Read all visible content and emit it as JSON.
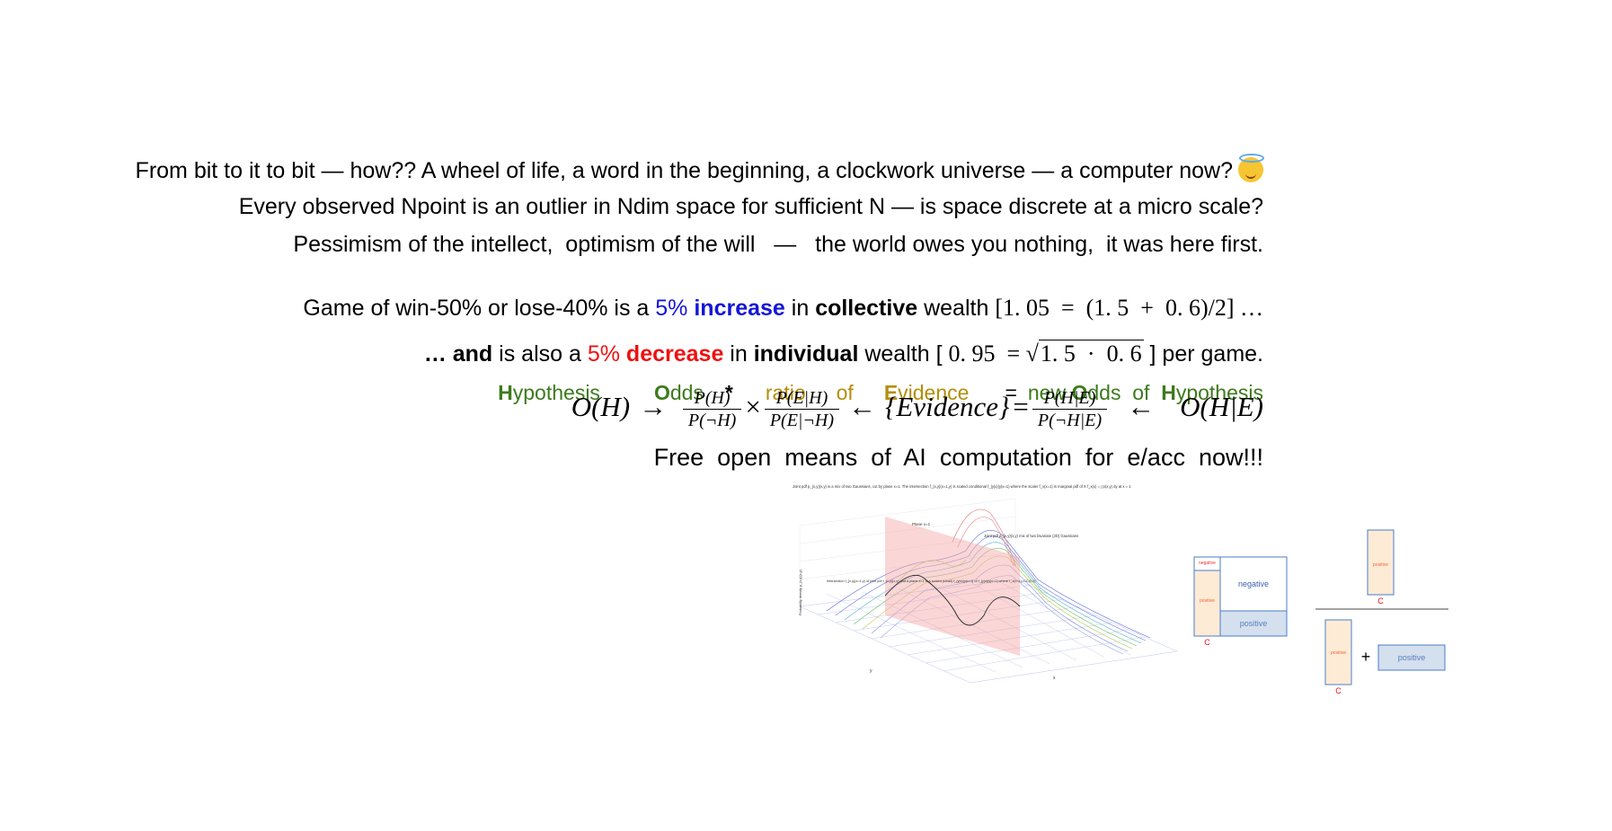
{
  "lines": {
    "l1": "From bit to it to bit — how?? A wheel of life, a word in the beginning, a clockwork universe — a computer now?",
    "l2": "Every observed Npoint is an outlier in Ndim space for sufficient N — is space discrete at a micro scale?",
    "l3": "Pessimism of the intellect,  optimism of the will   —   the world owes you nothing,  it was here first.",
    "l4": {
      "a": "Game of win-50% or lose-40% is a ",
      "b": "5%",
      "c": "increase",
      "d": " in ",
      "e": "collective",
      "f": " wealth ",
      "g": "[1. 05  =  (1. 5  +  0. 6)/2] …"
    },
    "l5": {
      "a": "… and",
      "b": " is also a ",
      "c": "5%",
      "d": "decrease",
      "e": " in ",
      "f": "individual",
      "g": " wealth [ ",
      "h": "0. 95  = ",
      "i": "1. 5  ·  0. 6",
      "j": " ] per game."
    },
    "l6": {
      "h1": "H",
      "h2": "ypothesis",
      "o1": "O",
      "o2": "dds",
      "star": "*",
      "ratio": "ratio",
      "of": "of",
      "e1": "E",
      "e2": "vidence",
      "eq": "=",
      "new": "new",
      "o3": "O",
      "o4": "dds",
      "of2": "of",
      "h3": "H",
      "h4": "ypothesis"
    },
    "eq": {
      "oh": "O(H)",
      "arrow1": "→",
      "f1n": "P(H)",
      "f1d": "P(¬H)",
      "times": "×",
      "f2n": "P(E|H)",
      "f2d": "P(E|¬H)",
      "arrow2": "←",
      "evidence": "{Evidence}",
      "equals": "=",
      "f3n": "P(H|E)",
      "f3d": "P(¬H|E)",
      "arrow3": "←",
      "ohe": "O(H|E)"
    },
    "l8": "Free  open  means  of  AI  computation  for  e/acc  now!!!"
  },
  "figure": {
    "caption": "Joint pdf p_{x,y}(x,y) is a mix of two Gaussians, cut by plane x=1. The intersection f_{x,y}(x=1,y) is scaled conditional f_{y|x}(y|x=1) where the scaler f_x(x=1) is marginal pdf of X f_x(x) = ∫ p(x,y) dy at x = 1",
    "plane_label": "Plane x=1",
    "joint_label": "Joint pdf p_{x,y}(x,y) mix of two bivariate (2D) Gaussians",
    "intersect_label": "Intersection f_{x,y}(x=1,y) of joint pdf f_{x,y}(x,y) and a plane x=1 is a scaled (small) f_{y|x}(y|x=1) of f_{y|x}(y|x=1) where f_x(x=1)=CC(0,0)",
    "ylabel": "Probability density p_{x,y}(x,y)",
    "axis_y": "y",
    "axis_x": "x"
  },
  "box1": {
    "negative_small": "negative",
    "positive_small": "positive",
    "negative": "negative",
    "positive": "positive",
    "c": "C"
  },
  "box2": {
    "positive_top": "positive",
    "c_top": "C",
    "positive_left": "positive",
    "plus": "+",
    "positive_right": "positive",
    "c_bottom": "C"
  },
  "colors": {
    "blue": "#1515d8",
    "red": "#ee1111",
    "green": "#3d7a1c",
    "gold": "#b38e0b",
    "peach": "#fdebd6",
    "lightblue": "#d4e0ee"
  }
}
